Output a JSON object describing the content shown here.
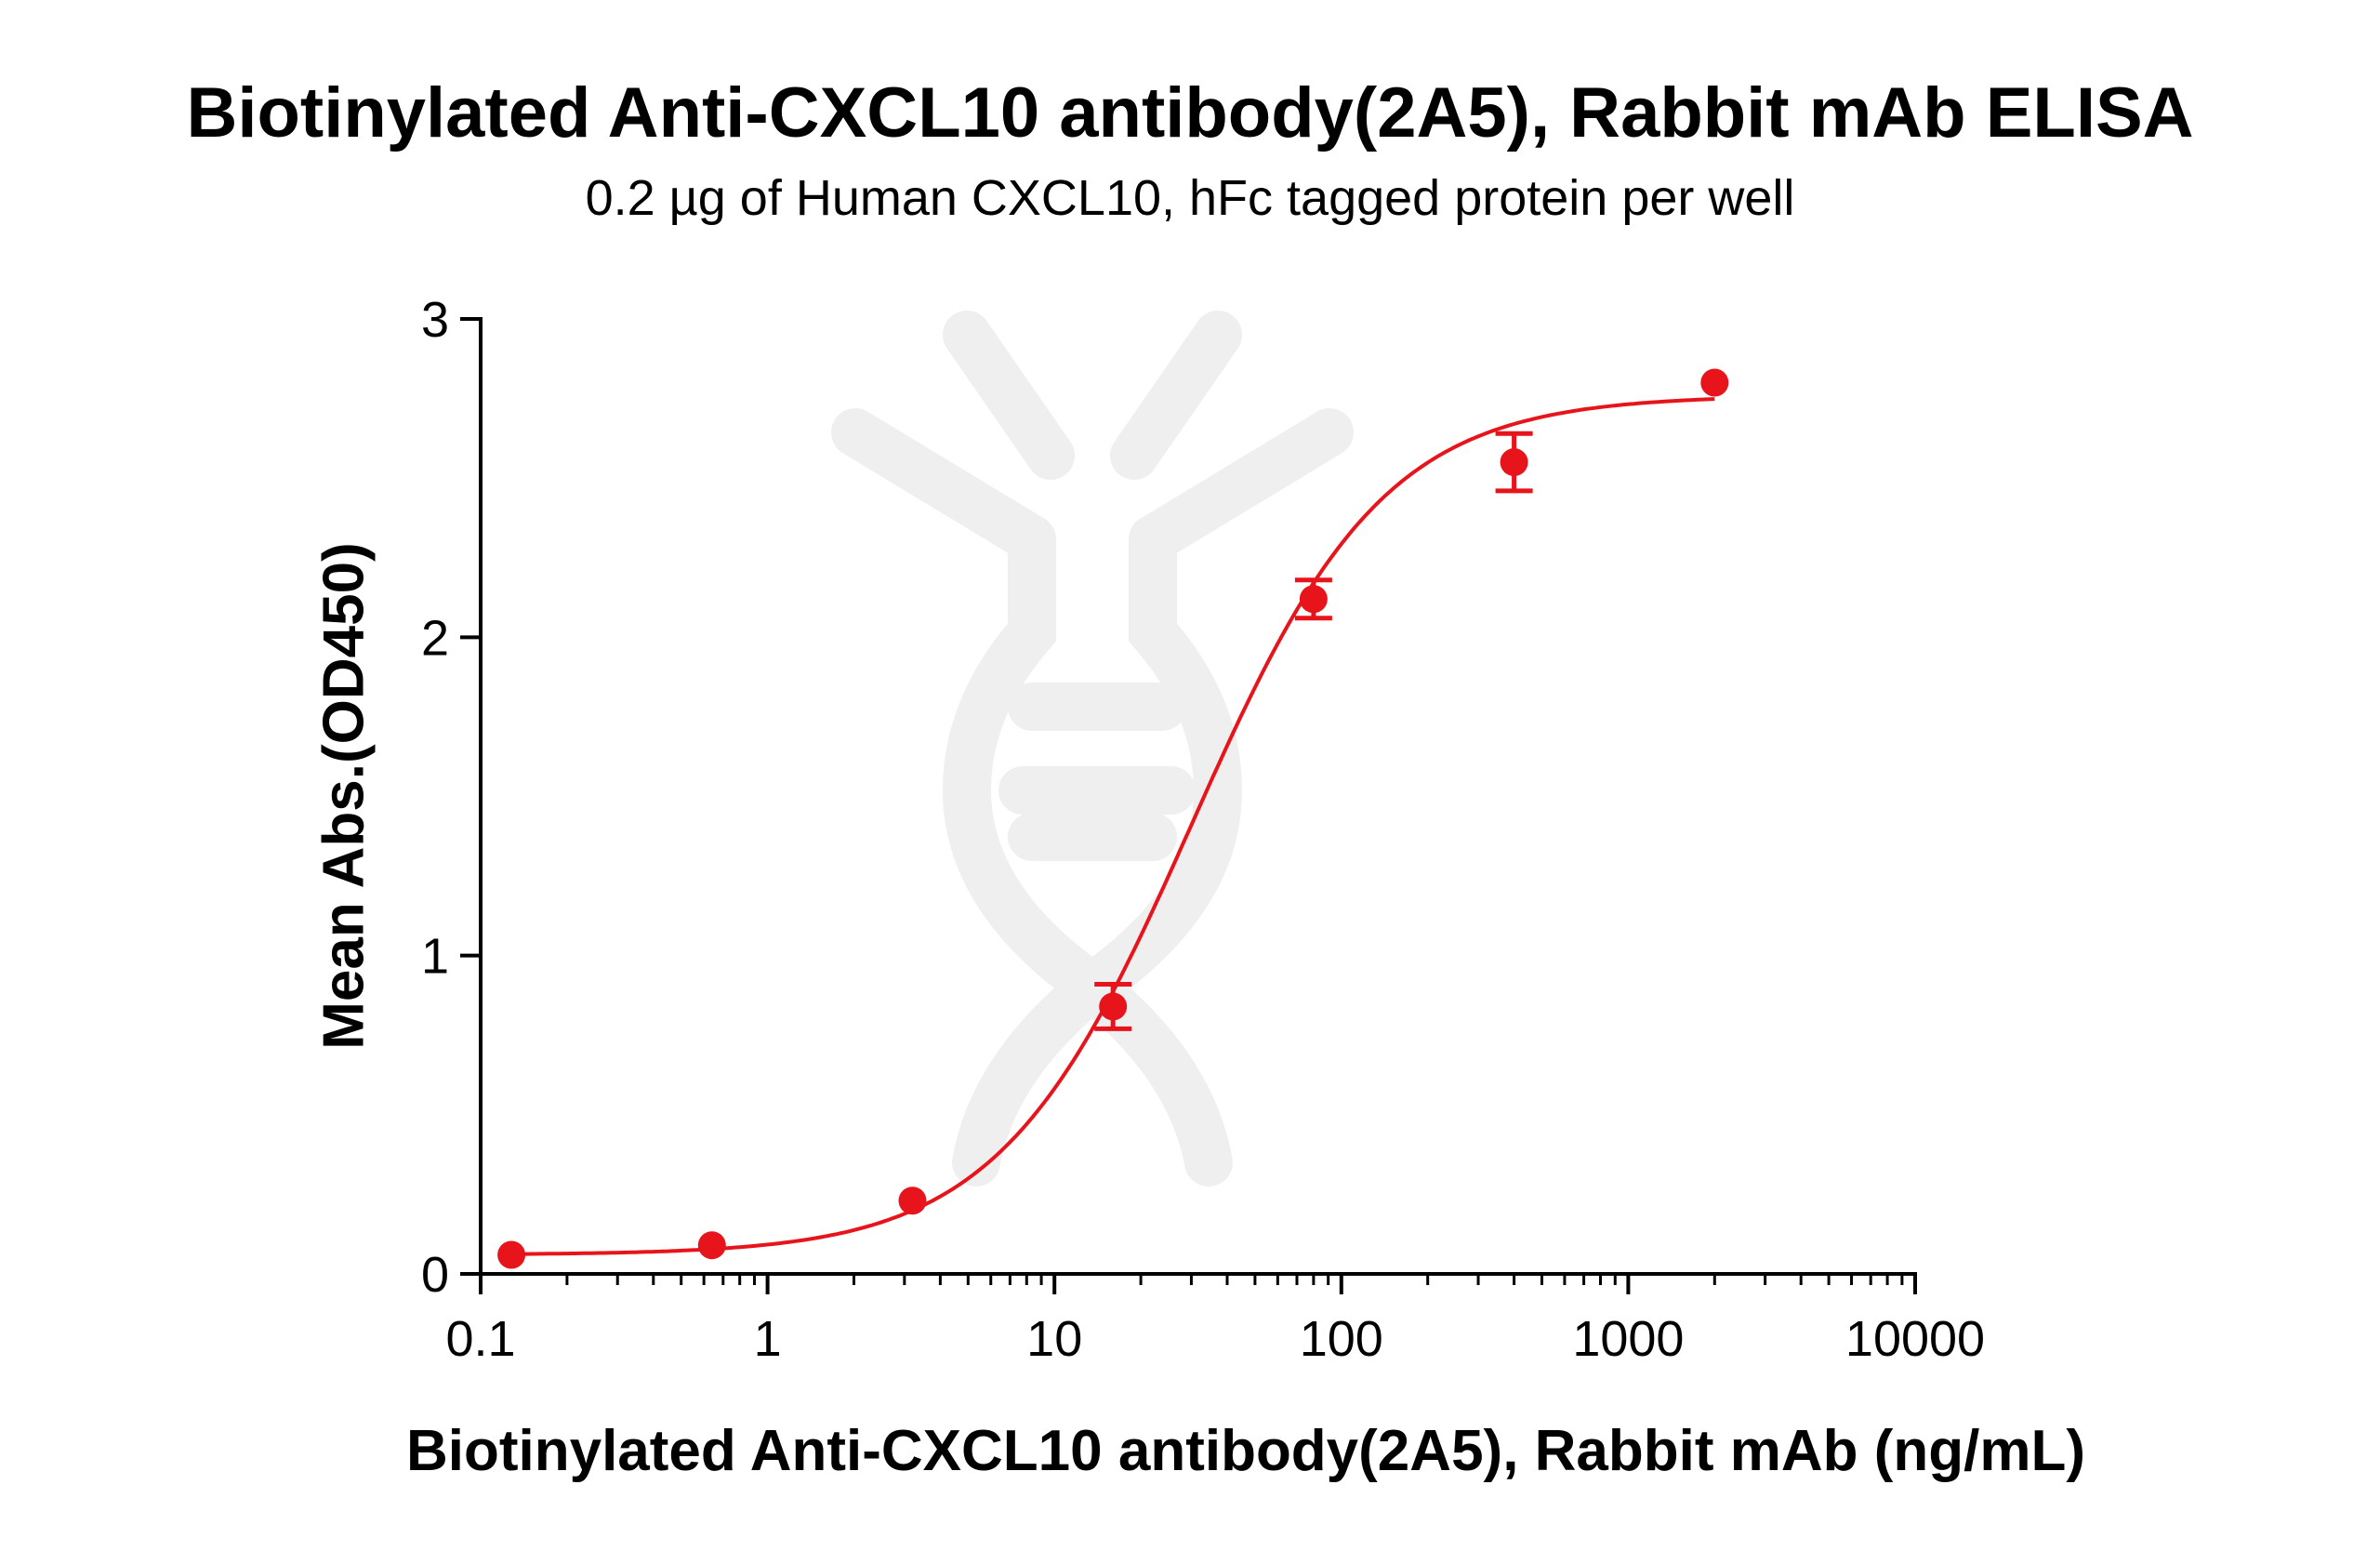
{
  "chart_data": {
    "type": "scatter",
    "title": "Biotinylated Anti-CXCL10 antibody(2A5), Rabbit mAb ELISA",
    "subtitle": "0.2 µg of Human CXCL10, hFc tagged protein per well",
    "xlabel": "Biotinylated Anti-CXCL10 antibody(2A5), Rabbit mAb (ng/mL)",
    "ylabel": "Mean Abs.(OD450)",
    "xscale": "log",
    "xlim": [
      0.1,
      10000
    ],
    "ylim": [
      0,
      3
    ],
    "xticks": [
      "0.1",
      "1",
      "10",
      "100",
      "1000",
      "10000"
    ],
    "yticks": [
      "0",
      "1",
      "2",
      "3"
    ],
    "grid": false,
    "color": "#e8141b",
    "points": {
      "x": [
        0.128,
        0.64,
        3.2,
        16,
        80,
        400,
        2000
      ],
      "y": [
        0.06,
        0.09,
        0.23,
        0.84,
        2.12,
        2.55,
        2.8
      ],
      "error": [
        0.01,
        0.01,
        0.01,
        0.07,
        0.06,
        0.09,
        0.01
      ]
    },
    "fit_curve": {
      "model": "4PL",
      "bottom": 0.06,
      "top": 2.76,
      "ec50": 30,
      "hill": 1.3
    }
  }
}
